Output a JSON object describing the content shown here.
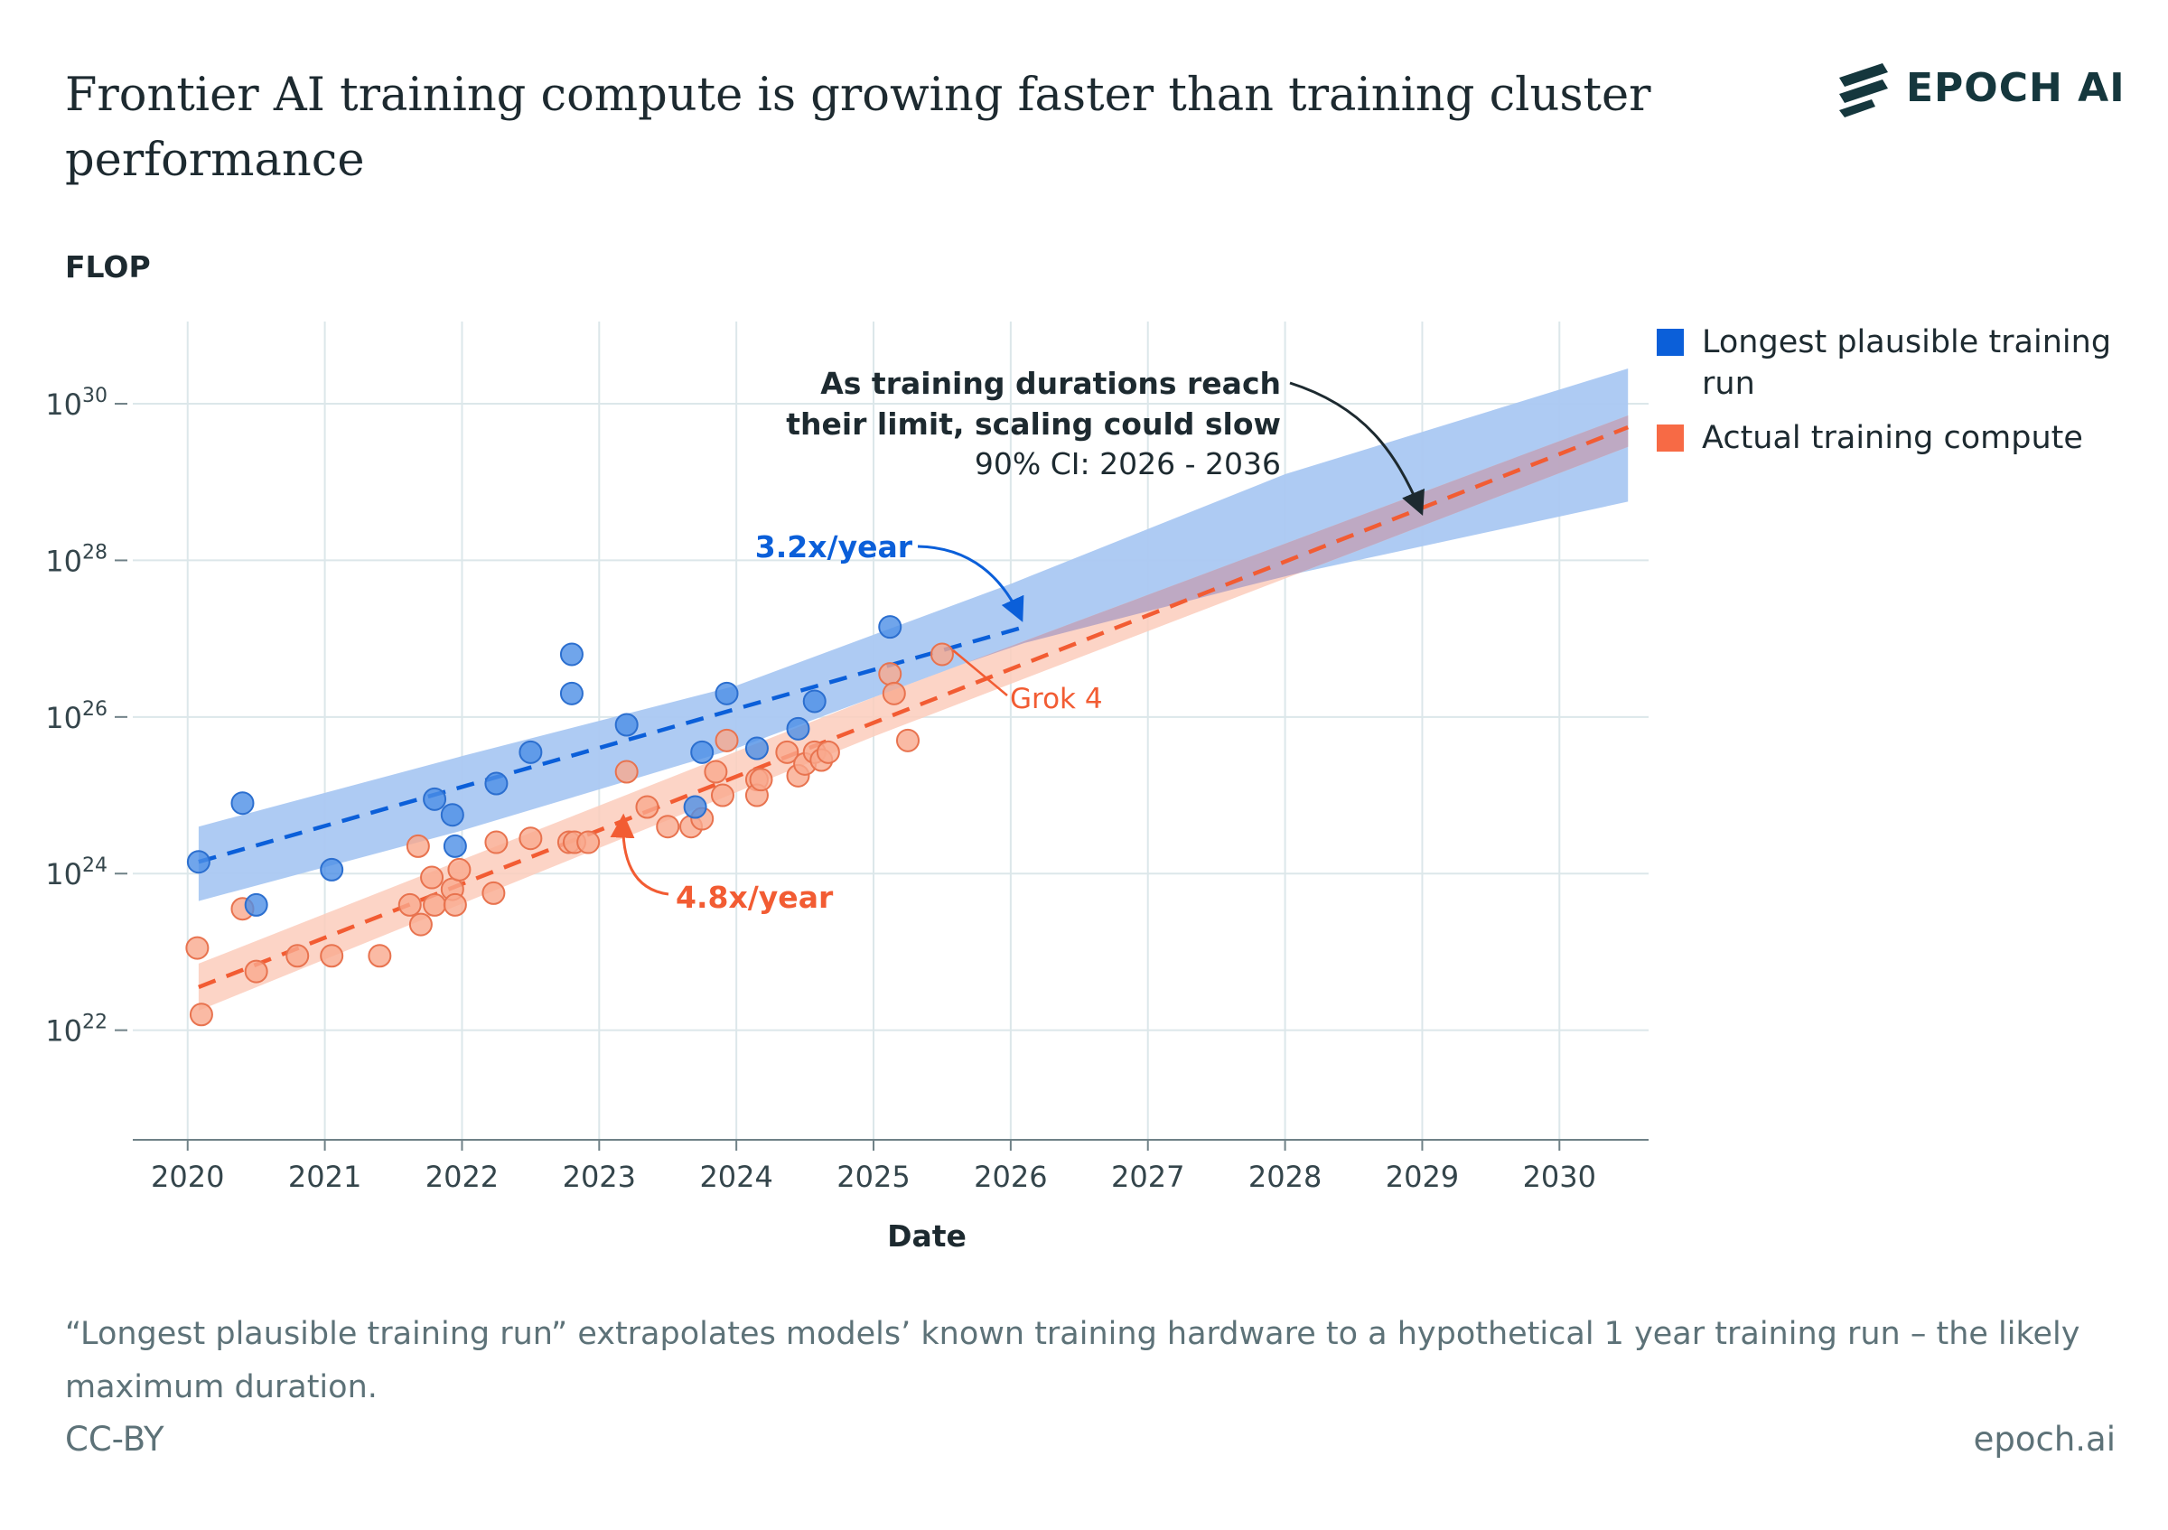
{
  "header": {
    "title": "Frontier AI training compute is growing faster than training cluster performance",
    "logo_text": "EPOCH AI",
    "logo_icon": "epoch-stripes-icon"
  },
  "footer": {
    "note": "“Longest plausible training run” extrapolates models’ known training hardware to a hypothetical 1 year training run – the likely maximum duration.",
    "license": "CC-BY",
    "site": "epoch.ai"
  },
  "chart_data": {
    "type": "scatter",
    "title": "Frontier AI training compute is growing faster than training cluster performance",
    "xlabel": "Date",
    "ylabel": "FLOP",
    "y_scale": "log",
    "xlim": [
      2019.6,
      2030.65
    ],
    "ylim_log10": [
      20.6,
      31.05
    ],
    "x_ticks": [
      2020,
      2021,
      2022,
      2023,
      2024,
      2025,
      2026,
      2027,
      2028,
      2029,
      2030
    ],
    "y_ticks_exponent": [
      22,
      24,
      26,
      28,
      30
    ],
    "y_tick_base": "10",
    "grid": true,
    "legend_position": "right",
    "colors": {
      "blue_points": "#4c8fe6",
      "blue_line": "#0b5fd9",
      "blue_band": "#aac8f2",
      "orange_points": "#f9a98d",
      "orange_line": "#f25c33",
      "orange_band": "#fbcdbc",
      "overlap_band": "#b8a5c2",
      "annotation_dark": "#1d2a30",
      "grid": "#dce7ea"
    },
    "series": [
      {
        "name": "Longest plausible training run",
        "color": "#0b5fd9",
        "points": [
          [
            2020.08,
            24.15
          ],
          [
            2020.4,
            24.9
          ],
          [
            2020.5,
            23.6
          ],
          [
            2021.05,
            24.05
          ],
          [
            2021.8,
            24.95
          ],
          [
            2021.93,
            24.75
          ],
          [
            2021.95,
            24.35
          ],
          [
            2022.25,
            25.15
          ],
          [
            2022.5,
            25.55
          ],
          [
            2022.8,
            26.8
          ],
          [
            2022.8,
            26.3
          ],
          [
            2023.2,
            25.9
          ],
          [
            2023.7,
            24.85
          ],
          [
            2023.75,
            25.55
          ],
          [
            2023.93,
            26.3
          ],
          [
            2024.15,
            25.6
          ],
          [
            2024.45,
            25.85
          ],
          [
            2024.57,
            26.2
          ],
          [
            2025.12,
            27.15
          ]
        ],
        "trend": {
          "x_start": 2020.08,
          "x_end": 2026.1,
          "y_start": 24.15,
          "y_end": 27.15
        },
        "band": {
          "x": [
            2020.08,
            2022.0,
            2024.0,
            2026.0,
            2028.0,
            2030.5
          ],
          "upper": [
            24.6,
            25.5,
            26.4,
            27.7,
            29.1,
            30.45
          ],
          "lower": [
            23.65,
            24.55,
            25.6,
            26.9,
            27.8,
            28.75
          ]
        },
        "rate_label": "3.2x/year"
      },
      {
        "name": "Actual training compute",
        "color": "#f25c33",
        "points": [
          [
            2020.07,
            23.05
          ],
          [
            2020.1,
            22.2
          ],
          [
            2020.4,
            23.55
          ],
          [
            2020.5,
            22.75
          ],
          [
            2020.8,
            22.95
          ],
          [
            2021.05,
            22.95
          ],
          [
            2021.4,
            22.95
          ],
          [
            2021.62,
            23.6
          ],
          [
            2021.68,
            24.35
          ],
          [
            2021.7,
            23.35
          ],
          [
            2021.78,
            23.95
          ],
          [
            2021.8,
            23.6
          ],
          [
            2021.93,
            23.8
          ],
          [
            2021.95,
            23.6
          ],
          [
            2021.98,
            24.05
          ],
          [
            2022.23,
            23.75
          ],
          [
            2022.25,
            24.4
          ],
          [
            2022.5,
            24.45
          ],
          [
            2022.78,
            24.4
          ],
          [
            2022.82,
            24.4
          ],
          [
            2022.92,
            24.4
          ],
          [
            2023.2,
            25.3
          ],
          [
            2023.35,
            24.85
          ],
          [
            2023.5,
            24.6
          ],
          [
            2023.67,
            24.6
          ],
          [
            2023.75,
            24.7
          ],
          [
            2023.85,
            25.3
          ],
          [
            2023.9,
            25.0
          ],
          [
            2023.93,
            25.7
          ],
          [
            2024.15,
            25.2
          ],
          [
            2024.15,
            25.0
          ],
          [
            2024.18,
            25.2
          ],
          [
            2024.37,
            25.55
          ],
          [
            2024.45,
            25.25
          ],
          [
            2024.5,
            25.4
          ],
          [
            2024.57,
            25.55
          ],
          [
            2024.62,
            25.45
          ],
          [
            2024.67,
            25.55
          ],
          [
            2025.12,
            26.55
          ],
          [
            2025.15,
            26.3
          ],
          [
            2025.25,
            25.7
          ],
          [
            2025.5,
            26.8
          ]
        ],
        "trend": {
          "x_start": 2020.08,
          "x_end": 2030.5,
          "y_start": 22.55,
          "y_end": 29.7
        },
        "band": {
          "x": [
            2020.08,
            2025.0,
            2030.5
          ],
          "upper": [
            22.85,
            26.25,
            29.85
          ],
          "lower": [
            22.25,
            25.75,
            29.45
          ]
        },
        "rate_label": "4.8x/year",
        "highlight": {
          "x": 2025.5,
          "y": 26.8,
          "label": "Grok 4"
        }
      }
    ],
    "annotations": {
      "limit_line1": "As training durations reach",
      "limit_line2": "their limit, scaling could slow",
      "limit_ci": "90% CI: 2026 - 2036"
    }
  }
}
